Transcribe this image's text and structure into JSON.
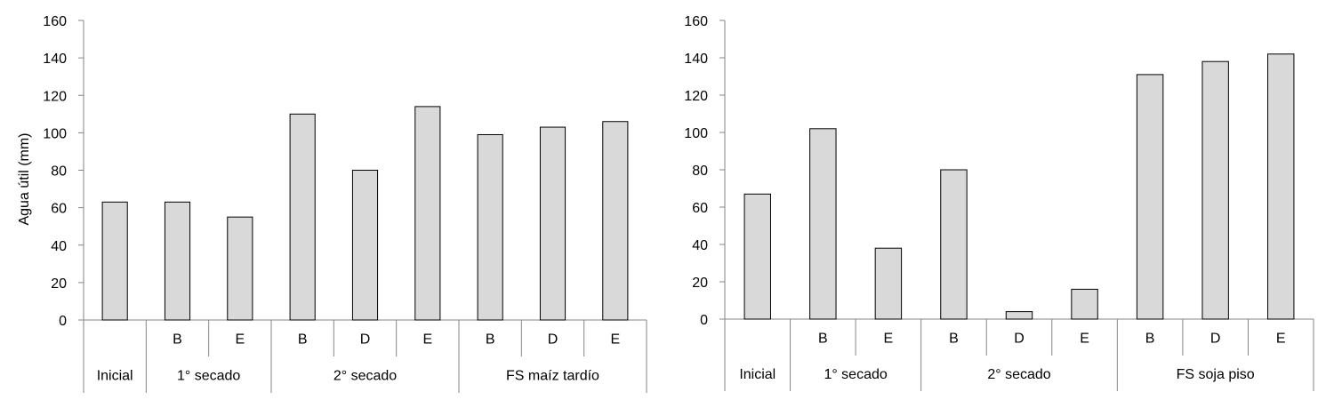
{
  "colors": {
    "bar_fill": "#d9d9d9",
    "bar_stroke": "#000000",
    "axis": "#868686",
    "background": "#ffffff"
  },
  "chart_data": [
    {
      "type": "bar",
      "ylabel": "Agua útil (mm)",
      "ylim": [
        0,
        160
      ],
      "yticks": [
        0,
        20,
        40,
        60,
        80,
        100,
        120,
        140,
        160
      ],
      "grid": false,
      "legend": "none",
      "categories": [
        "",
        "B",
        "E",
        "B",
        "D",
        "E",
        "B",
        "D",
        "E"
      ],
      "groups": [
        {
          "label": "Inicial",
          "count": 1
        },
        {
          "label": "1° secado",
          "count": 2
        },
        {
          "label": "2° secado",
          "count": 3
        },
        {
          "label": "FS maíz tardío",
          "count": 3
        }
      ],
      "values": [
        63,
        63,
        55,
        110,
        80,
        114,
        99,
        103,
        106
      ]
    },
    {
      "type": "bar",
      "ylabel": "",
      "ylim": [
        0,
        160
      ],
      "yticks": [
        0,
        20,
        40,
        60,
        80,
        100,
        120,
        140,
        160
      ],
      "grid": false,
      "legend": "none",
      "categories": [
        "",
        "B",
        "E",
        "B",
        "D",
        "E",
        "B",
        "D",
        "E"
      ],
      "groups": [
        {
          "label": "Inicial",
          "count": 1
        },
        {
          "label": "1° secado",
          "count": 2
        },
        {
          "label": "2° secado",
          "count": 3
        },
        {
          "label": "FS soja piso",
          "count": 3
        }
      ],
      "values": [
        67,
        102,
        38,
        80,
        4,
        16,
        131,
        138,
        142
      ]
    }
  ]
}
